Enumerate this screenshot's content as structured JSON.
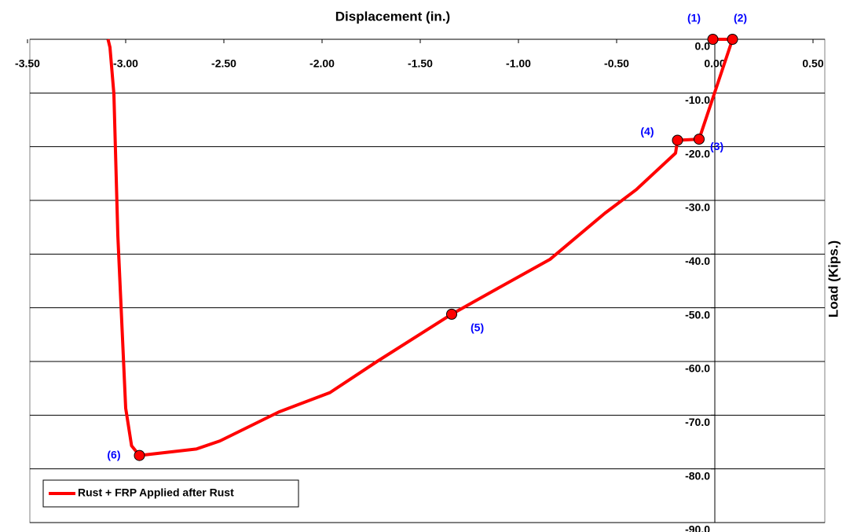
{
  "chart_data": {
    "type": "line",
    "x_label": "Displacement (in.)",
    "y_label": "Load (Kips.)",
    "xlim": [
      -3.5,
      0.56
    ],
    "ylim": [
      -90,
      0
    ],
    "xticks": [
      {
        "value": -3.5,
        "label": "-3.50"
      },
      {
        "value": -3.0,
        "label": "-3.00"
      },
      {
        "value": -2.5,
        "label": "-2.50"
      },
      {
        "value": -2.0,
        "label": "-2.00"
      },
      {
        "value": -1.5,
        "label": "-1.50"
      },
      {
        "value": -1.0,
        "label": "-1.00"
      },
      {
        "value": -0.5,
        "label": "-0.50"
      },
      {
        "value": 0,
        "label": "0.00"
      },
      {
        "value": 0.5,
        "label": "0.50"
      }
    ],
    "yticks": [
      {
        "value": 0,
        "label": "0.0"
      },
      {
        "value": -10,
        "label": "-10.0"
      },
      {
        "value": -20,
        "label": "-20.0"
      },
      {
        "value": -30,
        "label": "-30.0"
      },
      {
        "value": -40,
        "label": "-40.0"
      },
      {
        "value": -50,
        "label": "-50.0"
      },
      {
        "value": -60,
        "label": "-60.0"
      },
      {
        "value": -70,
        "label": "-70.0"
      },
      {
        "value": -80,
        "label": "-80.0"
      },
      {
        "value": -90,
        "label": "-90.0"
      }
    ],
    "grid": true,
    "legend": "lower left",
    "series": [
      {
        "name": "Rust + FRP Applied after Rust",
        "color": "#ff0000",
        "x": [
          -0.01,
          0.09,
          -0.08,
          -0.19,
          -0.2,
          -0.4,
          -0.56,
          -0.84,
          -1.16,
          -1.34,
          -1.72,
          -1.96,
          -2.22,
          -2.52,
          -2.64,
          -2.93,
          -2.97,
          -3.0,
          -3.04,
          -3.06,
          -3.08,
          -3.09
        ],
        "values": [
          0,
          0,
          -18.6,
          -18.8,
          -21.2,
          -28,
          -32.4,
          -41,
          -47.5,
          -51.2,
          -60,
          -65.8,
          -69.4,
          -74.8,
          -76.3,
          -77.5,
          -75.7,
          -68.7,
          -36.5,
          -10.2,
          -1.5,
          0
        ]
      }
    ],
    "annotations": [
      {
        "text": "(1)",
        "x": -0.01,
        "y": 0
      },
      {
        "text": "(2)",
        "x": 0.09,
        "y": 0
      },
      {
        "text": "(3)",
        "x": -0.08,
        "y": -18.6
      },
      {
        "text": "(4)",
        "x": -0.19,
        "y": -18.8
      },
      {
        "text": "(5)",
        "x": -1.34,
        "y": -51.2
      },
      {
        "text": "(6)",
        "x": -2.93,
        "y": -77.5
      }
    ]
  }
}
